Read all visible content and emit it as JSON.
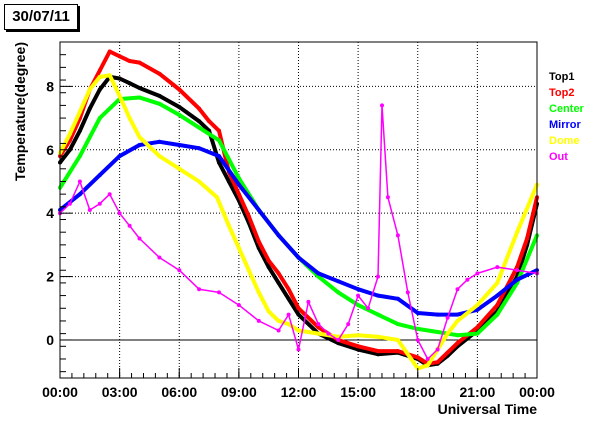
{
  "chart_data": {
    "type": "scatter",
    "title": "30/07/11",
    "xlabel": "Universal Time",
    "ylabel": "Temperature(degree)",
    "xlim": [
      0,
      24
    ],
    "ylim": [
      -1.2,
      9.4
    ],
    "x_ticks": [
      {
        "x": 0,
        "label": "00:00"
      },
      {
        "x": 3,
        "label": "03:00"
      },
      {
        "x": 6,
        "label": "06:00"
      },
      {
        "x": 9,
        "label": "09:00"
      },
      {
        "x": 12,
        "label": "12:00"
      },
      {
        "x": 15,
        "label": "15:00"
      },
      {
        "x": 18,
        "label": "18:00"
      },
      {
        "x": 21,
        "label": "21:00"
      },
      {
        "x": 24,
        "label": "00:00"
      }
    ],
    "y_ticks": [
      0,
      2,
      4,
      6,
      8
    ],
    "grid": true,
    "legend": "right",
    "series": [
      {
        "name": "Top1",
        "color": "#000000",
        "x": [
          0,
          0.5,
          1,
          1.5,
          2,
          2.5,
          3,
          3.5,
          4,
          5,
          6,
          7,
          7.5,
          8,
          8.5,
          9,
          9.5,
          10,
          10.5,
          11,
          11.5,
          12,
          13,
          14,
          15,
          16,
          17,
          18,
          18.5,
          19,
          19.5,
          20,
          21,
          22,
          23,
          23.5,
          24
        ],
        "y": [
          5.6,
          6.0,
          6.6,
          7.3,
          7.9,
          8.3,
          8.25,
          8.1,
          7.95,
          7.7,
          7.35,
          6.9,
          6.6,
          5.6,
          5.0,
          4.4,
          3.7,
          2.9,
          2.3,
          1.8,
          1.3,
          0.8,
          0.2,
          -0.1,
          -0.3,
          -0.45,
          -0.4,
          -0.6,
          -0.8,
          -0.75,
          -0.5,
          -0.2,
          0.3,
          0.9,
          2.0,
          3.0,
          4.3
        ]
      },
      {
        "name": "Top2",
        "color": "#ff0000",
        "x": [
          0,
          0.5,
          1,
          1.5,
          2,
          2.5,
          3,
          3.5,
          4,
          5,
          6,
          7,
          7.5,
          8,
          8.5,
          9,
          9.5,
          10,
          10.5,
          11,
          11.5,
          12,
          13,
          14,
          15,
          16,
          17,
          18,
          18.5,
          19,
          19.5,
          20,
          21,
          22,
          23,
          23.5,
          24
        ],
        "y": [
          5.8,
          6.3,
          7.0,
          7.9,
          8.5,
          9.1,
          8.95,
          8.8,
          8.75,
          8.4,
          7.9,
          7.3,
          6.9,
          6.6,
          5.3,
          4.6,
          3.9,
          3.1,
          2.5,
          2.1,
          1.6,
          1.0,
          0.4,
          0.0,
          -0.2,
          -0.35,
          -0.35,
          -0.55,
          -0.75,
          -0.7,
          -0.4,
          -0.1,
          0.4,
          1.1,
          2.3,
          3.2,
          4.5
        ]
      },
      {
        "name": "Center",
        "color": "#00ff00",
        "x": [
          0,
          1,
          2,
          3,
          4,
          5,
          6,
          7,
          8,
          9,
          10,
          11,
          12,
          13,
          14,
          15,
          16,
          17,
          18,
          19,
          20,
          21,
          22,
          23,
          24
        ],
        "y": [
          4.8,
          5.8,
          7.0,
          7.6,
          7.65,
          7.45,
          7.1,
          6.7,
          6.3,
          5.1,
          4.1,
          3.3,
          2.6,
          2.0,
          1.5,
          1.1,
          0.8,
          0.5,
          0.35,
          0.25,
          0.15,
          0.2,
          0.8,
          1.8,
          3.3
        ]
      },
      {
        "name": "Mirror",
        "color": "#0000ff",
        "x": [
          0,
          1,
          2,
          3,
          4,
          5,
          6,
          7,
          8,
          9,
          10,
          11,
          12,
          13,
          14,
          15,
          16,
          17,
          18,
          19,
          20,
          21,
          22,
          23,
          24
        ],
        "y": [
          4.1,
          4.6,
          5.2,
          5.8,
          6.15,
          6.25,
          6.15,
          6.05,
          5.8,
          4.9,
          4.1,
          3.3,
          2.6,
          2.1,
          1.85,
          1.6,
          1.4,
          1.3,
          0.85,
          0.8,
          0.8,
          0.95,
          1.4,
          1.9,
          2.2
        ]
      },
      {
        "name": "Dome",
        "color": "#ffff00",
        "x": [
          0,
          0.5,
          1,
          1.5,
          2,
          2.5,
          3,
          3.5,
          4,
          5,
          6,
          7,
          7.9,
          8.1,
          8.5,
          9,
          9.5,
          10,
          10.5,
          11,
          11.5,
          12,
          13,
          14,
          15,
          16,
          17,
          18,
          18.5,
          19,
          19.5,
          20,
          21,
          22,
          23,
          24
        ],
        "y": [
          5.9,
          6.5,
          7.2,
          7.9,
          8.3,
          8.35,
          7.7,
          7.0,
          6.4,
          5.8,
          5.4,
          5.0,
          4.5,
          4.2,
          3.6,
          2.9,
          2.2,
          1.5,
          0.9,
          0.6,
          0.5,
          0.3,
          0.2,
          0.1,
          0.15,
          0.1,
          0.0,
          -0.9,
          -0.8,
          -0.3,
          0.2,
          0.6,
          1.1,
          1.8,
          3.4,
          4.9
        ]
      },
      {
        "name": "Out",
        "color": "#ff00ff",
        "x": [
          0,
          0.5,
          1,
          1.5,
          2,
          2.5,
          3,
          3.5,
          4,
          5,
          6,
          7,
          8,
          9,
          10,
          11,
          11.5,
          12,
          12.5,
          13,
          13.5,
          14,
          14.5,
          15,
          15.5,
          16,
          16.2,
          16.5,
          17,
          17.5,
          18,
          18.5,
          19,
          19.5,
          20,
          20.5,
          21,
          22,
          23,
          24
        ],
        "y": [
          4.0,
          4.3,
          5.0,
          4.1,
          4.3,
          4.6,
          4.0,
          3.6,
          3.2,
          2.6,
          2.2,
          1.6,
          1.5,
          1.1,
          0.6,
          0.3,
          0.8,
          -0.3,
          1.2,
          0.5,
          0.2,
          0.0,
          0.5,
          1.4,
          1.0,
          2.0,
          7.4,
          4.5,
          3.3,
          1.5,
          0.0,
          -0.6,
          -0.3,
          0.7,
          1.6,
          1.9,
          2.1,
          2.3,
          2.2,
          2.1
        ]
      }
    ]
  }
}
